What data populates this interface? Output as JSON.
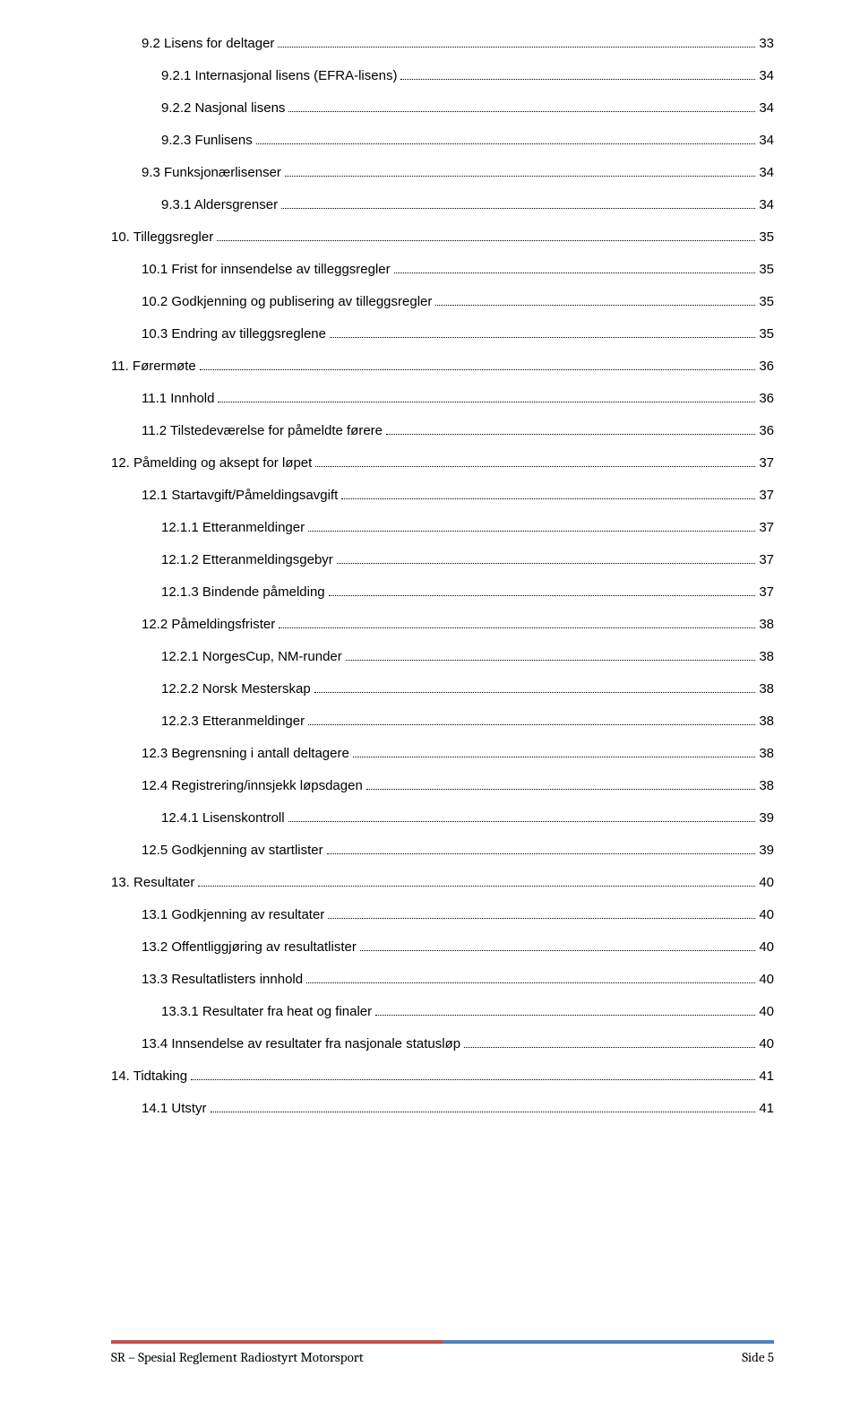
{
  "toc": [
    {
      "label": "9.2 Lisens for deltager",
      "page": "33",
      "indent": 34,
      "gap": 36
    },
    {
      "label": "9.2.1 Internasjonal lisens (EFRA-lisens)",
      "page": "34",
      "indent": 56,
      "gap": 36
    },
    {
      "label": "9.2.2 Nasjonal lisens",
      "page": "34",
      "indent": 56,
      "gap": 36
    },
    {
      "label": "9.2.3 Funlisens",
      "page": "34",
      "indent": 56,
      "gap": 36
    },
    {
      "label": "9.3 Funksjonærlisenser",
      "page": "34",
      "indent": 34,
      "gap": 36
    },
    {
      "label": "9.3.1 Aldersgrenser",
      "page": "34",
      "indent": 56,
      "gap": 36
    },
    {
      "label": "10. Tilleggsregler",
      "page": "35",
      "indent": 0,
      "gap": 36
    },
    {
      "label": "10.1 Frist for innsendelse av tilleggsregler",
      "page": "35",
      "indent": 34,
      "gap": 36
    },
    {
      "label": "10.2 Godkjenning og publisering av tilleggsregler",
      "page": "35",
      "indent": 34,
      "gap": 36
    },
    {
      "label": "10.3 Endring av tilleggsreglene",
      "page": "35",
      "indent": 34,
      "gap": 36
    },
    {
      "label": "11. Førermøte",
      "page": "36",
      "indent": 0,
      "gap": 36
    },
    {
      "label": "11.1 Innhold",
      "page": "36",
      "indent": 34,
      "gap": 36
    },
    {
      "label": "11.2 Tilstedeværelse for påmeldte førere",
      "page": "36",
      "indent": 34,
      "gap": 36
    },
    {
      "label": "12. Påmelding og aksept for løpet",
      "page": "37",
      "indent": 0,
      "gap": 36
    },
    {
      "label": "12.1 Startavgift/Påmeldingsavgift",
      "page": "37",
      "indent": 34,
      "gap": 36
    },
    {
      "label": "12.1.1 Etteranmeldinger",
      "page": "37",
      "indent": 56,
      "gap": 36
    },
    {
      "label": "12.1.2 Etteranmeldingsgebyr",
      "page": "37",
      "indent": 56,
      "gap": 36
    },
    {
      "label": "12.1.3 Bindende påmelding",
      "page": "37",
      "indent": 56,
      "gap": 36
    },
    {
      "label": "12.2 Påmeldingsfrister",
      "page": "38",
      "indent": 34,
      "gap": 36
    },
    {
      "label": "12.2.1 NorgesCup, NM-runder",
      "page": "38",
      "indent": 56,
      "gap": 36
    },
    {
      "label": "12.2.2 Norsk Mesterskap",
      "page": "38",
      "indent": 56,
      "gap": 36
    },
    {
      "label": "12.2.3 Etteranmeldinger",
      "page": "38",
      "indent": 56,
      "gap": 36
    },
    {
      "label": "12.3 Begrensning i antall deltagere",
      "page": "38",
      "indent": 34,
      "gap": 36
    },
    {
      "label": "12.4 Registrering/innsjekk løpsdagen",
      "page": "38",
      "indent": 34,
      "gap": 36
    },
    {
      "label": "12.4.1 Lisenskontroll",
      "page": "39",
      "indent": 56,
      "gap": 36
    },
    {
      "label": "12.5 Godkjenning av startlister",
      "page": "39",
      "indent": 34,
      "gap": 36
    },
    {
      "label": "13. Resultater",
      "page": "40",
      "indent": 0,
      "gap": 36
    },
    {
      "label": "13.1 Godkjenning av resultater",
      "page": "40",
      "indent": 34,
      "gap": 36
    },
    {
      "label": "13.2 Offentliggjøring av resultatlister",
      "page": "40",
      "indent": 34,
      "gap": 36
    },
    {
      "label": "13.3 Resultatlisters innhold",
      "page": "40",
      "indent": 34,
      "gap": 36
    },
    {
      "label": "13.3.1 Resultater fra heat og finaler",
      "page": "40",
      "indent": 56,
      "gap": 36
    },
    {
      "label": "13.4 Innsendelse av resultater fra nasjonale statusløp",
      "page": "40",
      "indent": 34,
      "gap": 36
    },
    {
      "label": "14. Tidtaking",
      "page": "41",
      "indent": 0,
      "gap": 36
    },
    {
      "label": "14.1 Utstyr",
      "page": "41",
      "indent": 34,
      "gap": 36
    }
  ],
  "footer": {
    "left": "SR – Spesial Reglement Radiostyrt Motorsport",
    "right": "Side 5",
    "red_color": "#c0504d",
    "blue_color": "#4f81bd"
  }
}
